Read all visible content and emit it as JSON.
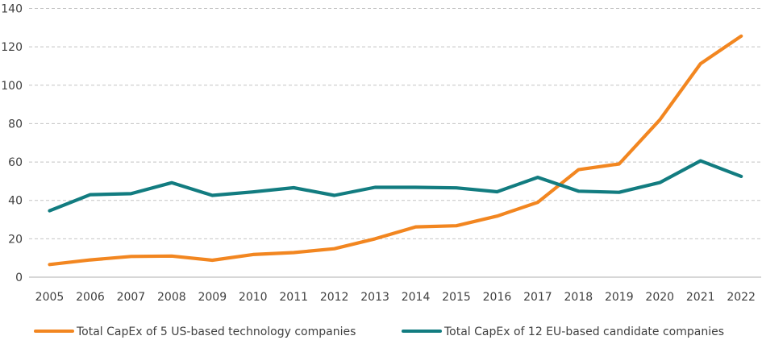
{
  "chart_data": {
    "type": "line",
    "title": "",
    "xlabel": "",
    "ylabel": "",
    "ylim": [
      0,
      140
    ],
    "yticks": [
      0,
      20,
      40,
      60,
      80,
      100,
      120,
      140
    ],
    "grid": true,
    "legend_position": "bottom",
    "x": [
      "2005",
      "2006",
      "2007",
      "2008",
      "2009",
      "2010",
      "2011",
      "2012",
      "2013",
      "2014",
      "2015",
      "2016",
      "2017",
      "2018",
      "2019",
      "2020",
      "2021",
      "2022"
    ],
    "series": [
      {
        "name": "Total CapEx of 5 US-based technology companies",
        "color": "#F28620",
        "values": [
          6.6,
          9,
          10.8,
          11,
          8.8,
          11.8,
          12.8,
          14.8,
          20,
          26.2,
          26.8,
          31.8,
          39,
          56,
          59,
          82,
          111.2,
          125.6
        ]
      },
      {
        "name": "Total CapEx of 12 EU-based candidate companies",
        "color": "#127C80",
        "values": [
          34.6,
          43,
          43.5,
          49.2,
          42.6,
          44.4,
          46.6,
          42.6,
          46.8,
          46.8,
          46.5,
          44.5,
          52,
          44.8,
          44.2,
          49.3,
          60.6,
          52.5
        ]
      }
    ]
  }
}
